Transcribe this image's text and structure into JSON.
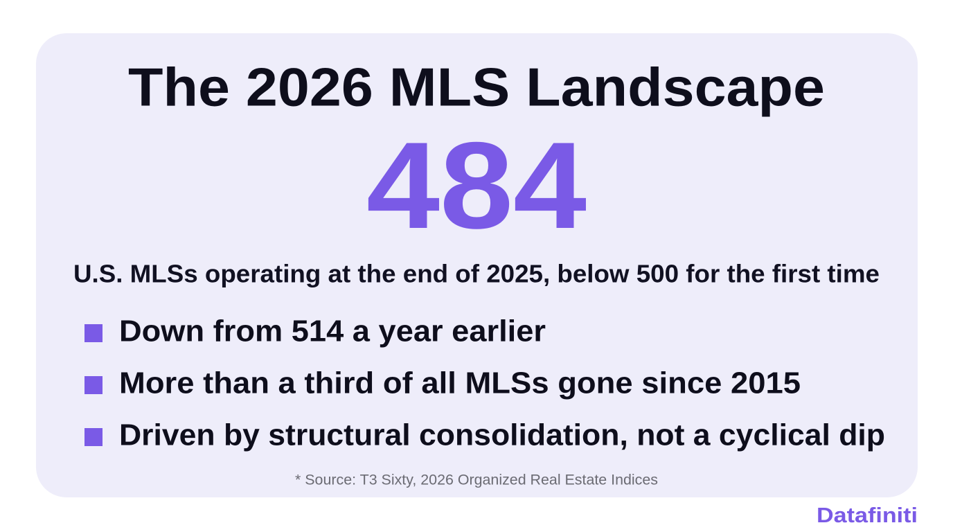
{
  "header": {
    "title": "The 2026 MLS Landscape"
  },
  "stat": {
    "value": 484,
    "caption": "U.S. MLSs operating at the end of 2025, below 500 for the first time"
  },
  "bullets": [
    "Down from 514 a year earlier",
    "More than a third of all MLSs gone since 2015",
    "Driven by structural consolidation, not a cyclical dip"
  ],
  "source": "* Source: T3 Sixty, 2026 Organized Real Estate Indices",
  "brand": "Datafiniti"
}
